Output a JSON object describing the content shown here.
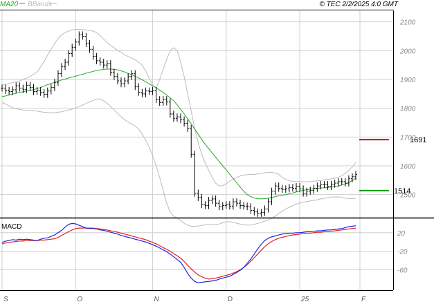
{
  "header": {
    "legend": [
      {
        "label": "MA20",
        "color": "#22aa22"
      },
      {
        "label": "BBands",
        "color": "#bbbbbb"
      }
    ],
    "timestamp": "© TEC 2/2/2025 4:0 GMT"
  },
  "colors": {
    "bars": "#000000",
    "ma20": "#22aa22",
    "bbands": "#bbbbbb",
    "macd": "#2222dd",
    "signal": "#dd2222",
    "resistance": "#cc0000",
    "support": "#009900",
    "grid": "#cfcfcf"
  },
  "chart_data": [
    {
      "type": "line",
      "panel": "price",
      "x_labels": [
        "S",
        "O",
        "N",
        "D",
        "25",
        "F"
      ],
      "y_ticks": [
        "2100",
        "2000",
        "1900",
        "1800",
        "1700",
        "1600",
        "1500"
      ],
      "ylim": [
        1420,
        2140
      ],
      "grid": true,
      "series": [
        {
          "name": "MA20",
          "values": [
            1840,
            1843,
            1846,
            1849,
            1852,
            1855,
            1857,
            1860,
            1862,
            1865,
            1868,
            1872,
            1877,
            1882,
            1886,
            1890,
            1894,
            1898,
            1901,
            1905,
            1908,
            1911,
            1915,
            1918,
            1922,
            1925,
            1928,
            1931,
            1933,
            1935,
            1936,
            1936,
            1935,
            1933,
            1930,
            1926,
            1921,
            1916,
            1911,
            1905,
            1899,
            1892,
            1885,
            1878,
            1871,
            1863,
            1855,
            1846,
            1836,
            1826,
            1812,
            1796,
            1780,
            1763,
            1746,
            1728,
            1710,
            1692,
            1675,
            1660,
            1645,
            1630,
            1615,
            1600,
            1586,
            1571,
            1556,
            1541,
            1526,
            1512,
            1500,
            1493,
            1488,
            1486,
            1485,
            1486,
            1488,
            1490,
            1493,
            1496,
            1498,
            1500,
            1503,
            1506,
            1509,
            1512,
            1515,
            1517,
            1519,
            1521,
            1522,
            1523,
            1524,
            1525,
            1526,
            1528,
            1530,
            1533,
            1537,
            1542,
            1549,
            1557
          ]
        },
        {
          "name": "BB Upper",
          "values": [
            1880,
            1883,
            1886,
            1889,
            1892,
            1895,
            1900,
            1905,
            1910,
            1918,
            1926,
            1945,
            1962,
            1985,
            2005,
            2025,
            2042,
            2055,
            2063,
            2068,
            2072,
            2074,
            2074,
            2073,
            2072,
            2070,
            2068,
            2063,
            2052,
            2040,
            2028,
            2018,
            2010,
            2000,
            1995,
            1985,
            1980,
            1975,
            1968,
            1960,
            1950,
            1930,
            1905,
            1880,
            1870,
            1900,
            1935,
            1970,
            2000,
            2010,
            2000,
            1960,
            1910,
            1850,
            1790,
            1730,
            1680,
            1640,
            1610,
            1585,
            1560,
            1540,
            1530,
            1531,
            1538,
            1546,
            1554,
            1560,
            1565,
            1568,
            1569,
            1570,
            1570,
            1572,
            1574,
            1576,
            1577,
            1577,
            1575,
            1570,
            1560,
            1553,
            1548,
            1546,
            1545,
            1545,
            1544,
            1544,
            1545,
            1547,
            1548,
            1549,
            1551,
            1553,
            1555,
            1557,
            1560,
            1566,
            1574,
            1584,
            1596,
            1612
          ]
        },
        {
          "name": "BB Lower",
          "values": [
            1820,
            1815,
            1808,
            1802,
            1798,
            1796,
            1794,
            1793,
            1792,
            1791,
            1790,
            1788,
            1786,
            1785,
            1784,
            1785,
            1786,
            1788,
            1791,
            1794,
            1797,
            1801,
            1806,
            1811,
            1817,
            1822,
            1827,
            1832,
            1832,
            1826,
            1817,
            1806,
            1795,
            1782,
            1770,
            1760,
            1752,
            1745,
            1738,
            1728,
            1710,
            1690,
            1665,
            1635,
            1600,
            1560,
            1515,
            1470,
            1440,
            1425,
            1418,
            1410,
            1400,
            1394,
            1390,
            1390,
            1391,
            1393,
            1395,
            1396,
            1396,
            1396,
            1398,
            1402,
            1405,
            1406,
            1404,
            1400,
            1398,
            1396,
            1394,
            1394,
            1397,
            1400,
            1404,
            1408,
            1412,
            1418,
            1425,
            1435,
            1443,
            1450,
            1456,
            1462,
            1467,
            1471,
            1474,
            1476,
            1478,
            1480,
            1482,
            1485,
            1487,
            1489,
            1491,
            1492,
            1492,
            1490,
            1488,
            1486,
            1486,
            1487
          ]
        },
        {
          "name": "Close",
          "values": [
            1870,
            1862,
            1858,
            1864,
            1878,
            1870,
            1865,
            1880,
            1872,
            1858,
            1862,
            1855,
            1848,
            1860,
            1872,
            1890,
            1920,
            1945,
            1960,
            1990,
            2012,
            2030,
            2055,
            2050,
            2025,
            2005,
            1980,
            1965,
            1960,
            1950,
            1955,
            1925,
            1910,
            1895,
            1885,
            1895,
            1910,
            1920,
            1875,
            1855,
            1850,
            1860,
            1858,
            1862,
            1830,
            1820,
            1830,
            1822,
            1780,
            1765,
            1770,
            1760,
            1748,
            1730,
            1640,
            1505,
            1490,
            1465,
            1462,
            1480,
            1485,
            1470,
            1458,
            1462,
            1465,
            1460,
            1475,
            1470,
            1462,
            1460,
            1458,
            1445,
            1440,
            1435,
            1438,
            1450,
            1475,
            1512,
            1530,
            1522,
            1518,
            1520,
            1525,
            1522,
            1528,
            1520,
            1505,
            1512,
            1515,
            1522,
            1530,
            1535,
            1535,
            1528,
            1536,
            1540,
            1545,
            1545,
            1540,
            1555,
            1562,
            1570
          ]
        }
      ],
      "horizontal_levels": [
        {
          "value": 1691,
          "label": "1691",
          "color": "#cc0000"
        },
        {
          "value": 1514,
          "label": "1514",
          "color": "#009900"
        }
      ]
    },
    {
      "type": "line",
      "panel": "indicator",
      "title": "MACD",
      "y_ticks": [
        "20",
        "-20",
        "-60"
      ],
      "ylim": [
        -104,
        48
      ],
      "grid": true,
      "series": [
        {
          "name": "MACD",
          "values": [
            -1,
            2,
            3,
            5,
            4,
            6,
            5,
            6,
            5,
            4,
            3,
            6,
            8,
            9,
            12,
            15,
            20,
            25,
            32,
            38,
            40,
            39,
            36,
            33,
            30,
            29,
            29,
            28,
            26,
            25,
            23,
            21,
            19,
            17,
            14,
            12,
            10,
            8,
            6,
            4,
            2,
            0,
            -3,
            -6,
            -9,
            -13,
            -17,
            -21,
            -26,
            -32,
            -38,
            -44,
            -55,
            -68,
            -78,
            -85,
            -88,
            -87,
            -86,
            -85,
            -84,
            -83,
            -80,
            -78,
            -76,
            -74,
            -70,
            -66,
            -61,
            -55,
            -46,
            -37,
            -26,
            -15,
            -5,
            3,
            8,
            11,
            13,
            15,
            17,
            18,
            19,
            19,
            20,
            20,
            21,
            22,
            22,
            23,
            24,
            24,
            25,
            26,
            26,
            27,
            28,
            29,
            31,
            33,
            34,
            35
          ]
        },
        {
          "name": "Signal",
          "values": [
            -4,
            -2,
            -1,
            0,
            1,
            2,
            2,
            3,
            3,
            3,
            3,
            4,
            4,
            5,
            6,
            7,
            10,
            14,
            18,
            22,
            26,
            29,
            30,
            30,
            30,
            30,
            30,
            29,
            28,
            27,
            26,
            24,
            23,
            21,
            19,
            17,
            15,
            13,
            11,
            9,
            7,
            5,
            2,
            -1,
            -4,
            -8,
            -12,
            -16,
            -20,
            -25,
            -30,
            -35,
            -42,
            -50,
            -58,
            -65,
            -71,
            -75,
            -78,
            -80,
            -79,
            -78,
            -76,
            -74,
            -72,
            -70,
            -67,
            -64,
            -60,
            -55,
            -49,
            -42,
            -34,
            -26,
            -18,
            -10,
            -4,
            1,
            5,
            8,
            10,
            12,
            14,
            15,
            16,
            17,
            18,
            19,
            19,
            20,
            21,
            21,
            22,
            22,
            23,
            24,
            25,
            26,
            27,
            28,
            29,
            30
          ]
        }
      ]
    }
  ]
}
